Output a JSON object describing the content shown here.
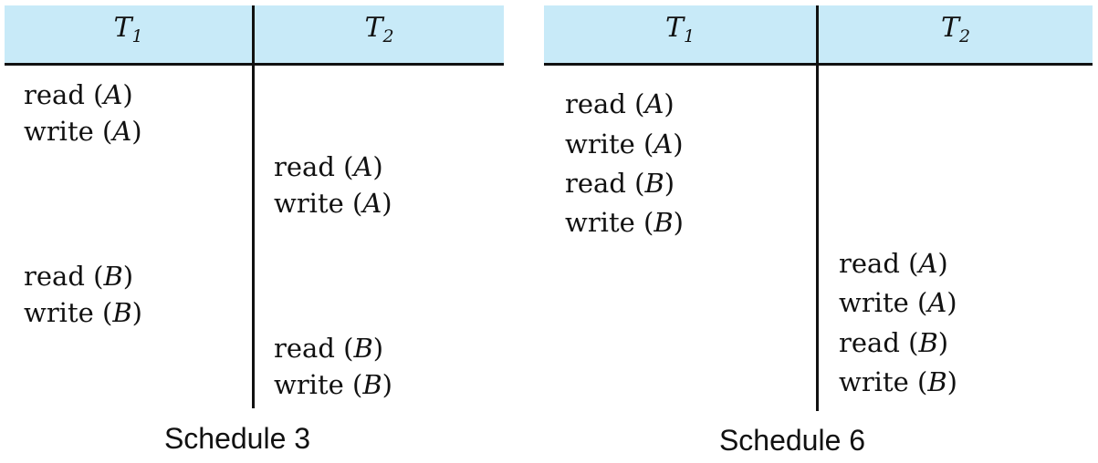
{
  "schedules": [
    {
      "caption": "Schedule 3",
      "col1_header": "T",
      "col1_sub": "1",
      "col2_header": "T",
      "col2_sub": "2",
      "ops": [
        {
          "col": 1,
          "name": "read",
          "item": "A"
        },
        {
          "col": 1,
          "name": "write",
          "item": "A"
        },
        {
          "col": 2,
          "name": "read",
          "item": "A"
        },
        {
          "col": 2,
          "name": "write",
          "item": "A"
        },
        {
          "col": 1,
          "name": "read",
          "item": "B"
        },
        {
          "col": 1,
          "name": "write",
          "item": "B"
        },
        {
          "col": 2,
          "name": "read",
          "item": "B"
        },
        {
          "col": 2,
          "name": "write",
          "item": "B"
        }
      ]
    },
    {
      "caption": "Schedule 6",
      "col1_header": "T",
      "col1_sub": "1",
      "col2_header": "T",
      "col2_sub": "2",
      "ops": [
        {
          "col": 1,
          "name": "read",
          "item": "A"
        },
        {
          "col": 1,
          "name": "write",
          "item": "A"
        },
        {
          "col": 1,
          "name": "read",
          "item": "B"
        },
        {
          "col": 1,
          "name": "write",
          "item": "B"
        },
        {
          "col": 2,
          "name": "read",
          "item": "A"
        },
        {
          "col": 2,
          "name": "write",
          "item": "A"
        },
        {
          "col": 2,
          "name": "read",
          "item": "B"
        },
        {
          "col": 2,
          "name": "write",
          "item": "B"
        }
      ]
    }
  ],
  "colors": {
    "header_bg": "#c8eaf8",
    "line": "#111111"
  }
}
